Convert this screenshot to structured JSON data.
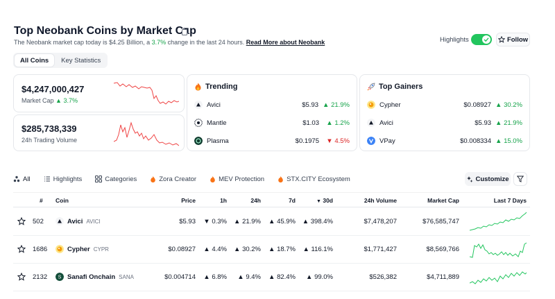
{
  "header": {
    "title": "Top Neobank Coins by Market Cap",
    "subtitle_prefix": "The Neobank market cap today is $4.25 Billion, a ",
    "subtitle_pct": "3.7%",
    "subtitle_suffix": " change in the last 24 hours.",
    "read_more": "Read More about Neobank",
    "highlights_label": "Highlights",
    "follow_label": "Follow"
  },
  "tabs": [
    "All Coins",
    "Key Statistics"
  ],
  "stats": {
    "market_cap_value": "$4,247,000,427",
    "market_cap_label": "Market Cap",
    "market_cap_change": "3.7%",
    "volume_value": "$285,738,339",
    "volume_label": "24h Trading Volume"
  },
  "trending": {
    "title": "Trending",
    "items": [
      {
        "name": "Avici",
        "price": "$5.93",
        "change": "21.9%",
        "dir": "up"
      },
      {
        "name": "Mantle",
        "price": "$1.03",
        "change": "1.2%",
        "dir": "up"
      },
      {
        "name": "Plasma",
        "price": "$0.1975",
        "change": "4.5%",
        "dir": "down"
      }
    ]
  },
  "gainers": {
    "title": "Top Gainers",
    "items": [
      {
        "name": "Cypher",
        "price": "$0.08927",
        "change": "30.2%",
        "dir": "up"
      },
      {
        "name": "Avici",
        "price": "$5.93",
        "change": "21.9%",
        "dir": "up"
      },
      {
        "name": "VPay",
        "price": "$0.008334",
        "change": "15.0%",
        "dir": "up"
      }
    ]
  },
  "categories": [
    "All",
    "Highlights",
    "Categories",
    "Zora Creator",
    "MEV Protection",
    "STX.CITY Ecosystem"
  ],
  "customize_label": "Customize",
  "table": {
    "headers": {
      "rank": "#",
      "coin": "Coin",
      "price": "Price",
      "h1": "1h",
      "h24": "24h",
      "d7": "7d",
      "d30": "30d",
      "volume": "24h Volume",
      "mcap": "Market Cap",
      "last7": "Last 7 Days"
    },
    "rows": [
      {
        "rank": "502",
        "name": "Avici",
        "symbol": "AVICI",
        "price": "$5.93",
        "h1": "0.3%",
        "h1_dir": "down",
        "h24": "21.9%",
        "h24_dir": "up",
        "d7": "45.9%",
        "d7_dir": "up",
        "d30": "398.4%",
        "d30_dir": "up",
        "volume": "$7,478,207",
        "mcap": "$76,585,747"
      },
      {
        "rank": "1686",
        "name": "Cypher",
        "symbol": "CYPR",
        "price": "$0.08927",
        "h1": "4.4%",
        "h1_dir": "up",
        "h24": "30.2%",
        "h24_dir": "up",
        "d7": "18.7%",
        "d7_dir": "up",
        "d30": "116.1%",
        "d30_dir": "up",
        "volume": "$1,771,427",
        "mcap": "$8,569,766"
      },
      {
        "rank": "2132",
        "name": "Sanafi Onchain",
        "symbol": "SANA",
        "price": "$0.004714",
        "h1": "6.8%",
        "h1_dir": "up",
        "h24": "9.4%",
        "h24_dir": "up",
        "d7": "82.4%",
        "d7_dir": "up",
        "d30": "99.0%",
        "d30_dir": "up",
        "volume": "$526,382",
        "mcap": "$4,711,889"
      }
    ]
  },
  "colors": {
    "up": "#16a34a",
    "down": "#dc2626",
    "spark_red": "#ef4444",
    "spark_green": "#22c55e",
    "toggle": "#22c55e"
  }
}
